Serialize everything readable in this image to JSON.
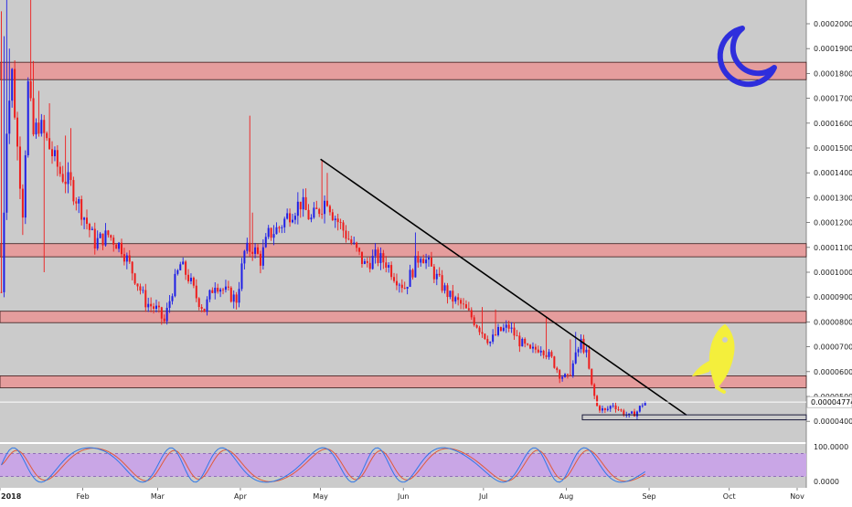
{
  "chart_data": {
    "type": "candlestick",
    "price_axis": {
      "ylim": [
        3.5e-05,
        0.00021
      ],
      "ticks": [
        {
          "value": 4e-05,
          "label": "0.00004000"
        },
        {
          "value": 5e-05,
          "label": "0.00005000"
        },
        {
          "value": 6e-05,
          "label": "0.00006000"
        },
        {
          "value": 7e-05,
          "label": "0.00007000"
        },
        {
          "value": 8e-05,
          "label": "0.00008000"
        },
        {
          "value": 9e-05,
          "label": "0.00009000"
        },
        {
          "value": 0.0001,
          "label": "0.00010000"
        },
        {
          "value": 0.00011,
          "label": "0.00011000"
        },
        {
          "value": 0.00012,
          "label": "0.00012000"
        },
        {
          "value": 0.00013,
          "label": "0.00013000"
        },
        {
          "value": 0.00014,
          "label": "0.00014000"
        },
        {
          "value": 0.00015,
          "label": "0.00015000"
        },
        {
          "value": 0.00016,
          "label": "0.00016000"
        },
        {
          "value": 0.00017,
          "label": "0.00017000"
        },
        {
          "value": 0.00018,
          "label": "0.00018000"
        },
        {
          "value": 0.00019,
          "label": "0.00019000"
        },
        {
          "value": 0.0002,
          "label": "0.00020000"
        }
      ],
      "last_price": {
        "value": 4.774e-05,
        "label": "0.00004774"
      }
    },
    "time_axis": {
      "labels": [
        "2018",
        "Feb",
        "Mar",
        "Apr",
        "May",
        "Jun",
        "Jul",
        "Aug",
        "Sep",
        "Oct",
        "Nov"
      ],
      "day_index": [
        0,
        31,
        59,
        90,
        120,
        151,
        181,
        212,
        243,
        273,
        304
      ],
      "data_range_days": [
        0,
        241
      ]
    },
    "zones": [
      {
        "low": 0.0001775,
        "high": 0.0001845
      },
      {
        "low": 0.0001062,
        "high": 0.0001115
      },
      {
        "low": 7.97e-05,
        "high": 8.43e-05
      },
      {
        "low": 5.35e-05,
        "high": 5.83e-05
      }
    ],
    "trendline": {
      "from": {
        "day": 120,
        "price": 0.0001455
      },
      "to": {
        "day": 257,
        "price": 4.25e-05
      }
    },
    "bottom_box": {
      "from_day": 218,
      "to_day": 260,
      "low": 4.06e-05,
      "high": 4.26e-05
    },
    "last_price_line": 4.774e-05,
    "candle_colors": {
      "up": "#1f1fe6",
      "down": "#ee1c1c"
    },
    "zone_fill": "#e59d9d",
    "zone_stroke": "#3a1a1a",
    "background": "#cbcbcb",
    "annotations": [
      "moon-icon",
      "rocket-icon"
    ],
    "candles": {
      "anchors": [
        [
          0,
          9.2e-05
        ],
        [
          2,
          0.00016
        ],
        [
          4,
          0.00018
        ],
        [
          6,
          0.00015
        ],
        [
          8,
          0.000125
        ],
        [
          10,
          0.000175
        ],
        [
          12,
          0.000155
        ],
        [
          14,
          0.00016
        ],
        [
          18,
          0.00015
        ],
        [
          22,
          0.00014
        ],
        [
          26,
          0.000135
        ],
        [
          30,
          0.000125
        ],
        [
          35,
          0.000112
        ],
        [
          40,
          0.000115
        ],
        [
          45,
          0.00011
        ],
        [
          50,
          9.8e-05
        ],
        [
          54,
          8.8e-05
        ],
        [
          58,
          8.5e-05
        ],
        [
          61,
          8e-05
        ],
        [
          64,
          9.3e-05
        ],
        [
          67,
          0.000103
        ],
        [
          70,
          9.8e-05
        ],
        [
          73,
          9e-05
        ],
        [
          76,
          8.5e-05
        ],
        [
          80,
          9.6e-05
        ],
        [
          84,
          9.2e-05
        ],
        [
          88,
          8.9e-05
        ],
        [
          91,
          0.000108
        ],
        [
          94,
          0.00011
        ],
        [
          97,
          0.000105
        ],
        [
          100,
          0.000115
        ],
        [
          104,
          0.000118
        ],
        [
          108,
          0.000124
        ],
        [
          112,
          0.000128
        ],
        [
          116,
          0.000121
        ],
        [
          120,
          0.000127
        ],
        [
          122,
          0.00013
        ],
        [
          124,
          0.000124
        ],
        [
          128,
          0.000117
        ],
        [
          132,
          0.00011
        ],
        [
          136,
          0.000103
        ],
        [
          140,
          0.000106
        ],
        [
          144,
          0.000104
        ],
        [
          147,
          9.9e-05
        ],
        [
          151,
          9.4e-05
        ],
        [
          154,
          0.000101
        ],
        [
          157,
          0.000108
        ],
        [
          160,
          0.000103
        ],
        [
          164,
          9.6e-05
        ],
        [
          168,
          9e-05
        ],
        [
          172,
          8.7e-05
        ],
        [
          176,
          8.2e-05
        ],
        [
          180,
          7.6e-05
        ],
        [
          183,
          7.2e-05
        ],
        [
          186,
          7.6e-05
        ],
        [
          190,
          7.8e-05
        ],
        [
          194,
          7.2e-05
        ],
        [
          198,
          6.8e-05
        ],
        [
          202,
          7e-05
        ],
        [
          206,
          6.5e-05
        ],
        [
          209,
          5.9e-05
        ],
        [
          212,
          5.7e-05
        ],
        [
          215,
          6.6e-05
        ],
        [
          217,
          7.2e-05
        ],
        [
          219,
          6.7e-05
        ],
        [
          221,
          5.4e-05
        ],
        [
          223,
          4.6e-05
        ],
        [
          226,
          4.4e-05
        ],
        [
          229,
          4.7e-05
        ],
        [
          232,
          4.4e-05
        ],
        [
          235,
          4.2e-05
        ],
        [
          238,
          4.4e-05
        ],
        [
          240,
          4.7e-05
        ],
        [
          241,
          4.774e-05
        ]
      ],
      "spikes": [
        [
          0,
          0.000205
        ],
        [
          1,
          0.000195
        ],
        [
          2,
          0.000215
        ],
        [
          3,
          0.00019
        ],
        [
          6,
          0.000145
        ],
        [
          8,
          0.000115
        ],
        [
          11,
          0.000215
        ],
        [
          12,
          0.000185
        ],
        [
          14,
          0.000173
        ],
        [
          18,
          0.000168
        ],
        [
          24,
          0.000155
        ],
        [
          26,
          0.000158
        ],
        [
          16,
          0.0001
        ],
        [
          88,
          8.5e-05
        ],
        [
          93,
          0.000163
        ],
        [
          94,
          0.000124
        ],
        [
          120,
          0.000145
        ],
        [
          122,
          0.00014
        ],
        [
          137,
          0.000103
        ],
        [
          155,
          0.000116
        ],
        [
          180,
          8.6e-05
        ],
        [
          185,
          8.5e-05
        ],
        [
          204,
          8.2e-05
        ],
        [
          213,
          7.3e-05
        ],
        [
          215,
          7.6e-05
        ]
      ]
    },
    "oscillator": {
      "ylim": [
        0,
        100
      ],
      "ticks": [
        {
          "value": 100,
          "label": "100.0000"
        },
        {
          "value": 0,
          "label": "0.0000"
        }
      ],
      "band": {
        "low": 20,
        "high": 80
      },
      "band_fill": "#c9a6e6",
      "k_color": "#2f78e8",
      "d_color": "#e05a3a"
    }
  }
}
